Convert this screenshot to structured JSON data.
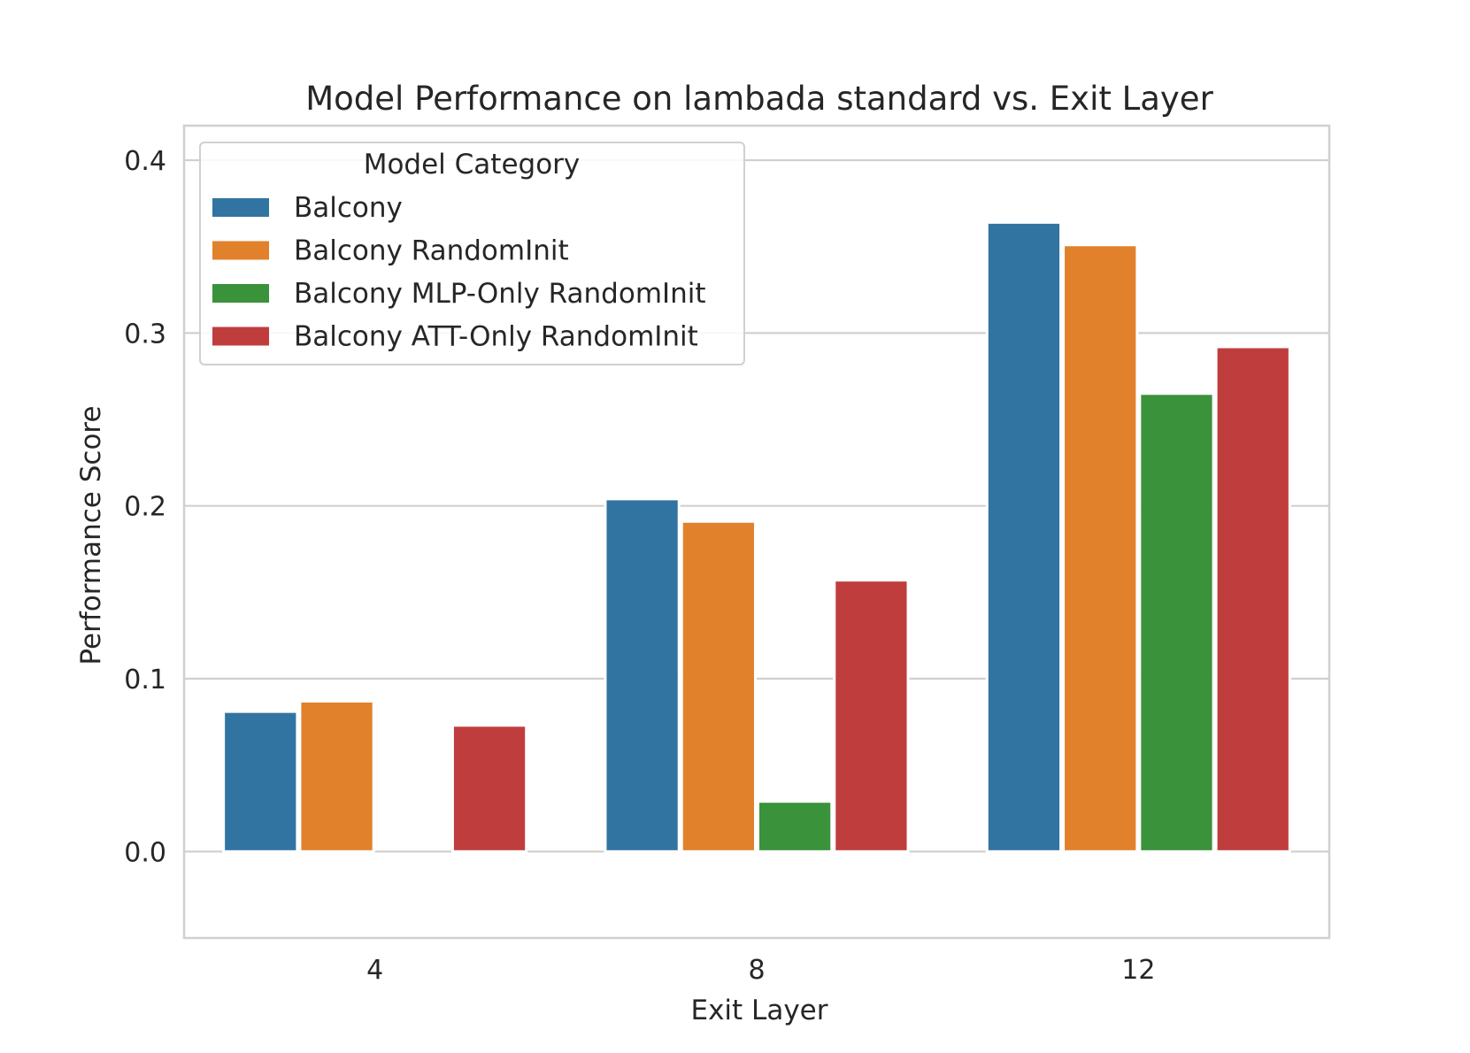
{
  "chart_data": {
    "type": "bar",
    "title": "Model Performance on lambada standard vs. Exit Layer",
    "xlabel": "Exit Layer",
    "ylabel": "Performance Score",
    "categories": [
      "4",
      "8",
      "12"
    ],
    "ylim": [
      -0.05,
      0.42
    ],
    "yticks": [
      "0.0",
      "0.1",
      "0.2",
      "0.3",
      "0.4"
    ],
    "ytick_values": [
      0.0,
      0.1,
      0.2,
      0.3,
      0.4
    ],
    "grid": true,
    "legend": {
      "title": "Model Category",
      "placement": "upper-left"
    },
    "series": [
      {
        "name": "Balcony",
        "color": "#3274a1",
        "values": [
          0.081,
          0.204,
          0.364
        ]
      },
      {
        "name": "Balcony RandomInit",
        "color": "#e1812c",
        "values": [
          0.087,
          0.191,
          0.351
        ]
      },
      {
        "name": "Balcony MLP-Only RandomInit",
        "color": "#3a923a",
        "values": [
          0.0,
          0.029,
          0.265
        ]
      },
      {
        "name": "Balcony ATT-Only RandomInit",
        "color": "#c03d3e",
        "values": [
          0.073,
          0.157,
          0.292
        ]
      }
    ]
  }
}
